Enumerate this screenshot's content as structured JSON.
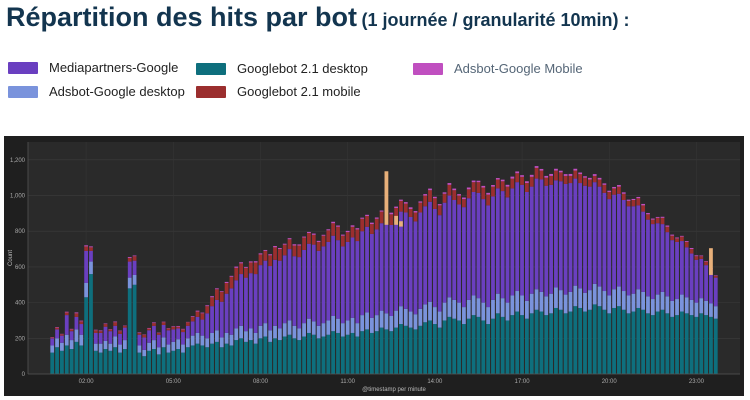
{
  "header": {
    "title_main": "Répartition des hits par bot",
    "title_sub": "(1 journée / granularité 10min) :"
  },
  "legend": [
    {
      "label": "Mediapartners-Google",
      "color": "#6a3fc0"
    },
    {
      "label": "Adsbot-Google desktop",
      "color": "#7a93dc"
    },
    {
      "label": "Googlebot 2.1 desktop",
      "color": "#0e6f7d"
    },
    {
      "label": "Googlebot 2.1 mobile",
      "color": "#9b2e2e"
    },
    {
      "label": "Adsbot-Google Mobile",
      "color": "#c04fc0"
    }
  ],
  "chart_data": {
    "type": "bar",
    "stacked": true,
    "xlabel": "@timestamp per minute",
    "ylabel": "Count",
    "ylim": [
      0,
      1300
    ],
    "y_ticks": [
      0,
      200,
      400,
      600,
      800,
      1000,
      1200
    ],
    "x_tick_labels": [
      "02:00",
      "05:00",
      "08:00",
      "11:00",
      "14:00",
      "17:00",
      "20:00",
      "23:00"
    ],
    "x_tick_positions": [
      7,
      25,
      43,
      61,
      79,
      97,
      115,
      133
    ],
    "x_range": [
      -5,
      142
    ],
    "grid": true,
    "legend_position": "top",
    "colors": {
      "googlebot_desktop": "#0e6f7d",
      "adsbot_desktop": "#7a93dc",
      "mediapartners": "#6a3fc0",
      "googlebot_mobile": "#9b2e2e",
      "adsbot_mobile": "#c04fc0",
      "spike": "#e8b07a"
    },
    "series": [
      {
        "name": "Googlebot 2.1 desktop",
        "key": "googlebot_desktop",
        "values": [
          120,
          150,
          130,
          160,
          140,
          180,
          160,
          430,
          560,
          130,
          120,
          140,
          130,
          150,
          120,
          140,
          480,
          500,
          120,
          100,
          130,
          140,
          110,
          150,
          120,
          130,
          140,
          120,
          150,
          160,
          170,
          160,
          150,
          170,
          180,
          150,
          170,
          160,
          190,
          200,
          180,
          190,
          170,
          200,
          210,
          180,
          200,
          190,
          210,
          220,
          200,
          190,
          210,
          230,
          220,
          200,
          210,
          220,
          240,
          230,
          210,
          220,
          230,
          210,
          240,
          250,
          230,
          240,
          260,
          250,
          240,
          260,
          280,
          270,
          260,
          250,
          270,
          290,
          300,
          280,
          260,
          300,
          320,
          310,
          300,
          280,
          310,
          330,
          320,
          300,
          280,
          310,
          340,
          320,
          300,
          330,
          350,
          330,
          310,
          340,
          360,
          350,
          330,
          340,
          370,
          360,
          340,
          350,
          380,
          370,
          350,
          360,
          390,
          380,
          360,
          340,
          370,
          380,
          360,
          340,
          350,
          370,
          360,
          340,
          330,
          350,
          360,
          340,
          320,
          330,
          350,
          340,
          330,
          320,
          340,
          330,
          320,
          310
        ]
      },
      {
        "name": "Adsbot-Google desktop",
        "key": "adsbot_desktop",
        "values": [
          40,
          50,
          45,
          60,
          50,
          70,
          60,
          80,
          70,
          40,
          50,
          45,
          40,
          60,
          45,
          50,
          60,
          55,
          40,
          35,
          45,
          50,
          40,
          55,
          45,
          50,
          55,
          45,
          50,
          55,
          60,
          55,
          50,
          60,
          65,
          55,
          60,
          60,
          65,
          70,
          60,
          65,
          60,
          70,
          75,
          65,
          70,
          65,
          75,
          80,
          70,
          65,
          75,
          80,
          75,
          70,
          75,
          80,
          85,
          80,
          75,
          80,
          85,
          75,
          90,
          95,
          85,
          90,
          95,
          90,
          85,
          95,
          100,
          95,
          90,
          85,
          95,
          100,
          105,
          95,
          90,
          100,
          110,
          105,
          100,
          95,
          105,
          110,
          105,
          100,
          95,
          105,
          110,
          105,
          100,
          110,
          115,
          110,
          100,
          110,
          115,
          110,
          105,
          110,
          115,
          110,
          105,
          110,
          115,
          110,
          105,
          110,
          115,
          110,
          105,
          100,
          105,
          110,
          105,
          100,
          100,
          105,
          100,
          95,
          90,
          95,
          100,
          95,
          90,
          90,
          95,
          90,
          85,
          80,
          85,
          80,
          75,
          70
        ]
      },
      {
        "name": "Mediapartners-Google",
        "key": "mediapartners",
        "values": [
          40,
          50,
          40,
          110,
          50,
          70,
          60,
          180,
          60,
          60,
          60,
          80,
          70,
          60,
          60,
          70,
          90,
          80,
          60,
          70,
          70,
          80,
          70,
          70,
          80,
          70,
          60,
          70,
          70,
          80,
          90,
          90,
          140,
          150,
          170,
          200,
          220,
          260,
          270,
          290,
          300,
          310,
          330,
          340,
          350,
          360,
          370,
          380,
          380,
          400,
          390,
          400,
          410,
          420,
          430,
          420,
          430,
          440,
          450,
          440,
          430,
          440,
          450,
          460,
          470,
          480,
          470,
          480,
          490,
          500,
          510,
          520,
          530,
          540,
          530,
          520,
          540,
          550,
          560,
          550,
          540,
          560,
          570,
          560,
          550,
          560,
          570,
          580,
          590,
          580,
          570,
          580,
          590,
          600,
          590,
          600,
          610,
          620,
          610,
          600,
          620,
          630,
          620,
          610,
          600,
          610,
          620,
          610,
          600,
          590,
          600,
          580,
          570,
          560,
          550,
          540,
          530,
          520,
          510,
          500,
          490,
          470,
          450,
          430,
          420,
          400,
          380,
          360,
          340,
          320,
          300,
          280,
          260,
          240,
          220,
          200,
          180,
          160
        ]
      },
      {
        "name": "Googlebot 2.1 mobile",
        "key": "googlebot_mobile",
        "values": [
          5,
          10,
          8,
          15,
          10,
          20,
          15,
          25,
          20,
          15,
          10,
          15,
          10,
          20,
          15,
          10,
          20,
          25,
          10,
          15,
          10,
          15,
          10,
          15,
          10,
          15,
          10,
          15,
          20,
          25,
          30,
          35,
          40,
          50,
          60,
          55,
          60,
          65,
          70,
          60,
          55,
          60,
          65,
          60,
          55,
          60,
          70,
          65,
          60,
          55,
          60,
          65,
          70,
          60,
          55,
          50,
          60,
          65,
          70,
          75,
          60,
          55,
          60,
          65,
          70,
          60,
          55,
          60,
          65,
          70,
          60,
          55,
          60,
          50,
          45,
          50,
          55,
          60,
          65,
          60,
          55,
          50,
          60,
          55,
          50,
          45,
          50,
          55,
          60,
          65,
          60,
          55,
          50,
          55,
          60,
          55,
          50,
          45,
          50,
          55,
          60,
          50,
          45,
          50,
          55,
          50,
          45,
          40,
          45,
          50,
          45,
          40,
          35,
          40,
          45,
          40,
          35,
          40,
          35,
          30,
          35,
          40,
          35,
          30,
          25,
          30,
          35,
          30,
          25,
          20,
          25,
          30,
          25,
          20,
          15,
          20,
          15,
          10
        ]
      },
      {
        "name": "Adsbot-Google Mobile",
        "key": "adsbot_mobile",
        "values": [
          2,
          3,
          2,
          4,
          3,
          5,
          4,
          6,
          5,
          3,
          4,
          3,
          2,
          4,
          3,
          2,
          5,
          4,
          3,
          2,
          3,
          4,
          2,
          3,
          2,
          3,
          4,
          3,
          2,
          4,
          5,
          4,
          5,
          6,
          5,
          4,
          6,
          5,
          7,
          6,
          5,
          6,
          7,
          6,
          5,
          6,
          7,
          6,
          5,
          6,
          7,
          6,
          5,
          6,
          7,
          6,
          5,
          6,
          8,
          7,
          6,
          7,
          8,
          7,
          6,
          7,
          8,
          7,
          6,
          8,
          9,
          8,
          7,
          8,
          9,
          8,
          7,
          8,
          9,
          8,
          7,
          8,
          10,
          9,
          8,
          9,
          10,
          9,
          8,
          9,
          10,
          9,
          8,
          9,
          10,
          11,
          10,
          9,
          10,
          11,
          10,
          9,
          10,
          11,
          10,
          9,
          10,
          11,
          10,
          9,
          8,
          9,
          10,
          9,
          8,
          7,
          8,
          9,
          8,
          7,
          6,
          7,
          8,
          7,
          6,
          5,
          6,
          7,
          6,
          5,
          4,
          5,
          6,
          5,
          4,
          3,
          4,
          3
        ]
      }
    ],
    "spikes": [
      {
        "x": 69,
        "value": 300,
        "base": 836
      },
      {
        "x": 71,
        "value": 50,
        "base": 836
      },
      {
        "x": 72,
        "value": 30,
        "base": 826
      },
      {
        "x": 136,
        "value": 150,
        "base": 555
      }
    ]
  }
}
